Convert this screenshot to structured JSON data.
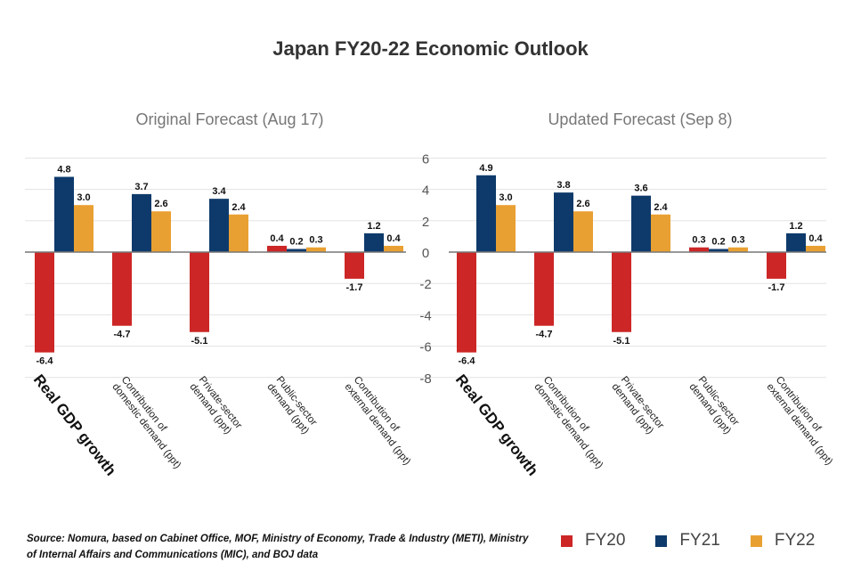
{
  "title": "Japan FY20-22 Economic Outlook",
  "source": "Source: Nomura, based on Cabinet Office, MOF, Ministry of Economy, Trade & Industry (METI), Ministry of Internal Affairs and Communications (MIC), and BOJ data",
  "colors": {
    "FY20": "#cc2626",
    "FY21": "#0e3a6b",
    "FY22": "#e9a032"
  },
  "legend": [
    {
      "label": "FY20",
      "color": "#cc2626"
    },
    {
      "label": "FY21",
      "color": "#0e3a6b"
    },
    {
      "label": "FY22",
      "color": "#e9a032"
    }
  ],
  "chart_data": [
    {
      "type": "bar",
      "title": "Original Forecast (Aug 17)",
      "categories": [
        "Real GDP growth",
        "Contribution of domestic demand (ppt)",
        "Private-sector demand (ppt)",
        "Public-sector demand (ppt)",
        "Contribution of external demand (ppt)"
      ],
      "series": [
        {
          "name": "FY20",
          "values": [
            -6.4,
            -4.7,
            -5.1,
            0.4,
            -1.7
          ]
        },
        {
          "name": "FY21",
          "values": [
            4.8,
            3.7,
            3.4,
            0.2,
            1.2
          ]
        },
        {
          "name": "FY22",
          "values": [
            3.0,
            2.6,
            2.4,
            0.3,
            0.4
          ]
        }
      ],
      "data_labels": [
        [
          "-6.4",
          "-4.7",
          "-5.1",
          "0.4",
          "-1.7"
        ],
        [
          "4.8",
          "3.7",
          "3.4",
          "0.2",
          "1.2"
        ],
        [
          "3.0",
          "2.6",
          "2.4",
          "0.3",
          "0.4"
        ]
      ],
      "ylim": [
        -8,
        6
      ],
      "yticks": [
        "-8",
        "-6",
        "-4",
        "-2",
        "0",
        "2",
        "4",
        "6"
      ],
      "grid": true
    },
    {
      "type": "bar",
      "title": "Updated Forecast (Sep 8)",
      "categories": [
        "Real GDP growth",
        "Contribution of domestic demand (ppt)",
        "Private-sector demand (ppt)",
        "Public-sector demand (ppt)",
        "Contribution of external demand (ppt)"
      ],
      "series": [
        {
          "name": "FY20",
          "values": [
            -6.4,
            -4.7,
            -5.1,
            0.3,
            -1.7
          ]
        },
        {
          "name": "FY21",
          "values": [
            4.9,
            3.8,
            3.6,
            0.2,
            1.2
          ]
        },
        {
          "name": "FY22",
          "values": [
            3.0,
            2.6,
            2.4,
            0.3,
            0.4
          ]
        }
      ],
      "data_labels": [
        [
          "-6.4",
          "-4.7",
          "-5.1",
          "0.3",
          "-1.7"
        ],
        [
          "4.9",
          "3.8",
          "3.6",
          "0.2",
          "1.2"
        ],
        [
          "3.0",
          "2.6",
          "2.4",
          "0.3",
          "0.4"
        ]
      ],
      "ylim": [
        -8,
        6
      ],
      "yticks": [
        "-8",
        "-6",
        "-4",
        "-2",
        "0",
        "2",
        "4",
        "6"
      ],
      "grid": true
    }
  ],
  "category_label_lines": [
    [
      "Real GDP growth"
    ],
    [
      "Contribution of",
      "domestic demand (ppt)"
    ],
    [
      "Private-sector",
      "demand (ppt)"
    ],
    [
      "Public-sector",
      "demand (ppt)"
    ],
    [
      "Contribution of",
      "external demand (ppt)"
    ]
  ]
}
